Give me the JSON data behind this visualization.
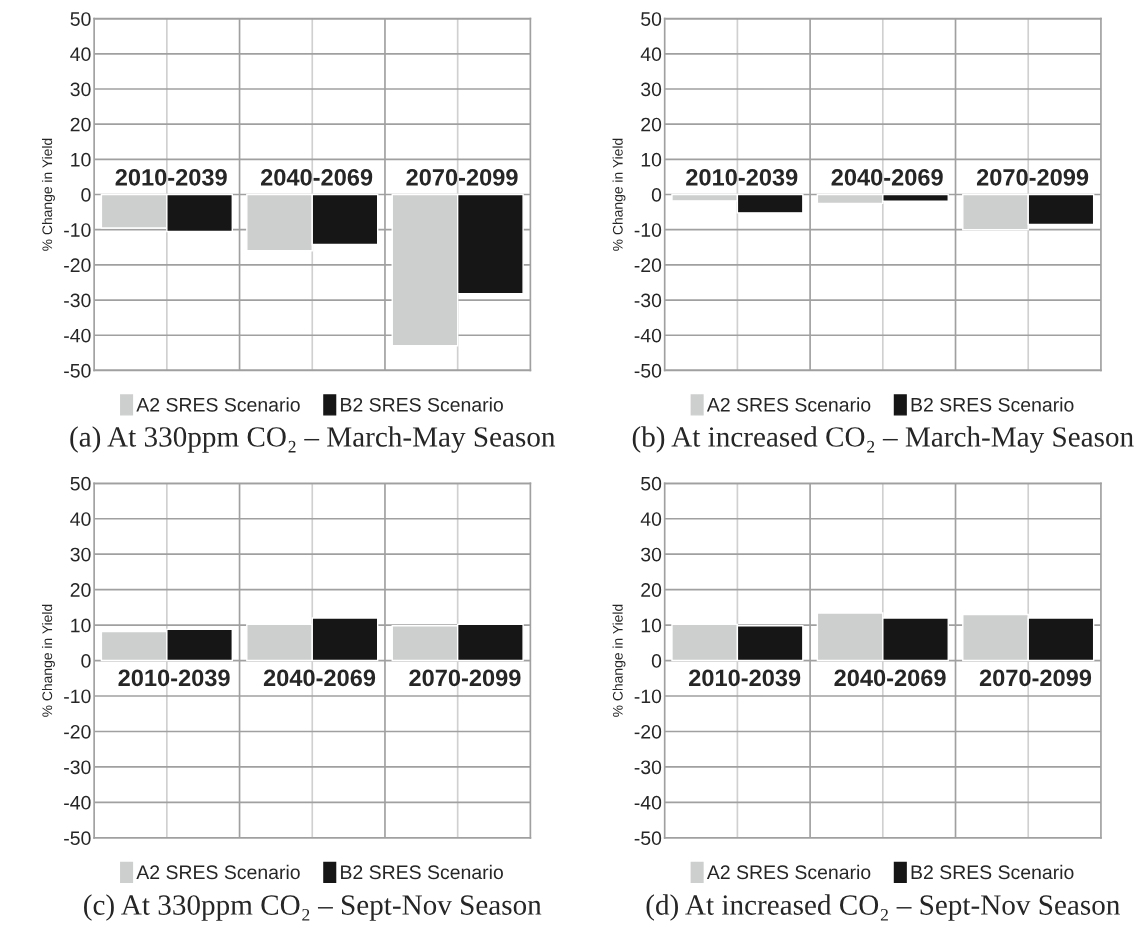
{
  "chart_data": [
    {
      "type": "bar",
      "title": "(a) At 330ppm CO₂ – March-May Season",
      "ylabel": "% Change in Yield",
      "categories": [
        "2010-2039",
        "2040-2069",
        "2070-2099"
      ],
      "series": [
        {
          "name": "A2 SRES Scenario",
          "color": "#cdcfce",
          "values": [
            -9.5,
            -16,
            -43
          ]
        },
        {
          "name": "B2 SRES Scenario",
          "color": "#161616",
          "values": [
            -10.5,
            -14.2,
            -28.2
          ]
        }
      ],
      "ylim": [
        -50,
        50
      ],
      "yticks": [
        -50,
        -40,
        -30,
        -20,
        -10,
        0,
        10,
        20,
        30,
        40,
        50
      ],
      "grid": true,
      "legend": "bottom"
    },
    {
      "type": "bar",
      "title": "(b) At increased CO₂ – March-May Season",
      "ylabel": "% Change in Yield",
      "categories": [
        "2010-2039",
        "2040-2069",
        "2070-2099"
      ],
      "series": [
        {
          "name": "A2 SRES Scenario",
          "color": "#cdcfce",
          "values": [
            -1.8,
            -2.5,
            -10
          ]
        },
        {
          "name": "B2 SRES Scenario",
          "color": "#161616",
          "values": [
            -5.2,
            -1.9,
            -8.5
          ]
        }
      ],
      "ylim": [
        -50,
        50
      ],
      "yticks": [
        -50,
        -40,
        -30,
        -20,
        -10,
        0,
        10,
        20,
        30,
        40,
        50
      ],
      "grid": true,
      "legend": "bottom"
    },
    {
      "type": "bar",
      "title": "(c) At 330ppm CO₂ – Sept-Nov Season",
      "ylabel": "% Change in Yield",
      "categories": [
        "2010-2039",
        "2040-2069",
        "2070-2099"
      ],
      "series": [
        {
          "name": "A2 SRES Scenario",
          "color": "#cdcfce",
          "values": [
            8.2,
            10.2,
            9.8
          ]
        },
        {
          "name": "B2 SRES Scenario",
          "color": "#161616",
          "values": [
            8.8,
            12,
            10.2
          ]
        }
      ],
      "ylim": [
        -50,
        50
      ],
      "yticks": [
        -50,
        -40,
        -30,
        -20,
        -10,
        0,
        10,
        20,
        30,
        40,
        50
      ],
      "grid": true,
      "legend": "bottom"
    },
    {
      "type": "bar",
      "title": "(d) At increased CO₂ – Sept-Nov Season",
      "ylabel": "% Change in Yield",
      "categories": [
        "2010-2039",
        "2040-2069",
        "2070-2099"
      ],
      "series": [
        {
          "name": "A2 SRES Scenario",
          "color": "#cdcfce",
          "values": [
            10.2,
            13.4,
            13
          ]
        },
        {
          "name": "B2 SRES Scenario",
          "color": "#161616",
          "values": [
            9.8,
            12,
            12
          ]
        }
      ],
      "ylim": [
        -50,
        50
      ],
      "yticks": [
        -50,
        -40,
        -30,
        -20,
        -10,
        0,
        10,
        20,
        30,
        40,
        50
      ],
      "grid": true,
      "legend": "bottom"
    }
  ]
}
